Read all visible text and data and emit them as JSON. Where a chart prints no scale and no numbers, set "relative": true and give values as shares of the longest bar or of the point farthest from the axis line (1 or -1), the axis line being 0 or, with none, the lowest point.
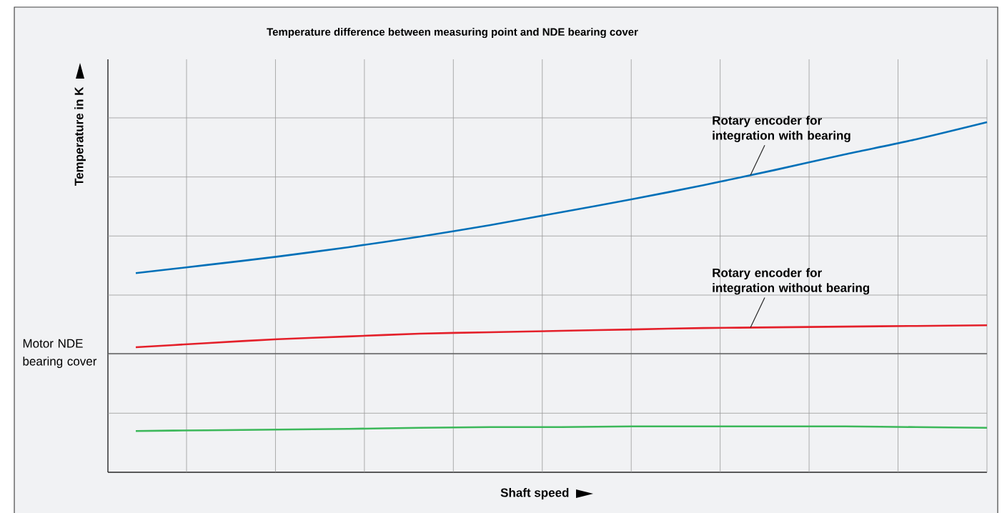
{
  "chart_data": {
    "type": "line",
    "title": "Temperature difference between measuring point and NDE bearing cover",
    "xlabel": "Shaft speed",
    "ylabel": "Temperature in K",
    "relative": true,
    "grid": true,
    "categories": [
      null,
      null,
      null,
      null,
      null,
      null,
      null,
      null,
      null,
      null,
      null,
      null,
      null
    ],
    "series": [
      {
        "name": "Rotary encoder for integration with bearing",
        "color": "#0070b8",
        "values": [
          0.569,
          0.592,
          0.616,
          0.643,
          0.673,
          0.706,
          0.743,
          0.78,
          0.82,
          0.863,
          0.908,
          0.951,
          1
        ]
      },
      {
        "name": "Rotary encoder for integration without bearing",
        "color": "#e4202a",
        "values": [
          0.357,
          0.369,
          0.38,
          0.388,
          0.396,
          0.4,
          0.404,
          0.408,
          0.412,
          0.414,
          0.416,
          0.418,
          0.42
        ]
      },
      {
        "color": "#3cb85a",
        "values": [
          0.118,
          0.12,
          0.122,
          0.124,
          0.127,
          0.129,
          0.129,
          0.131,
          0.131,
          0.131,
          0.131,
          0.129,
          0.127
        ]
      }
    ],
    "ref_lines": [
      {
        "axis": "y",
        "value": 0.339,
        "label": "Motor NDE bearing cover",
        "color": "#555555"
      }
    ]
  }
}
